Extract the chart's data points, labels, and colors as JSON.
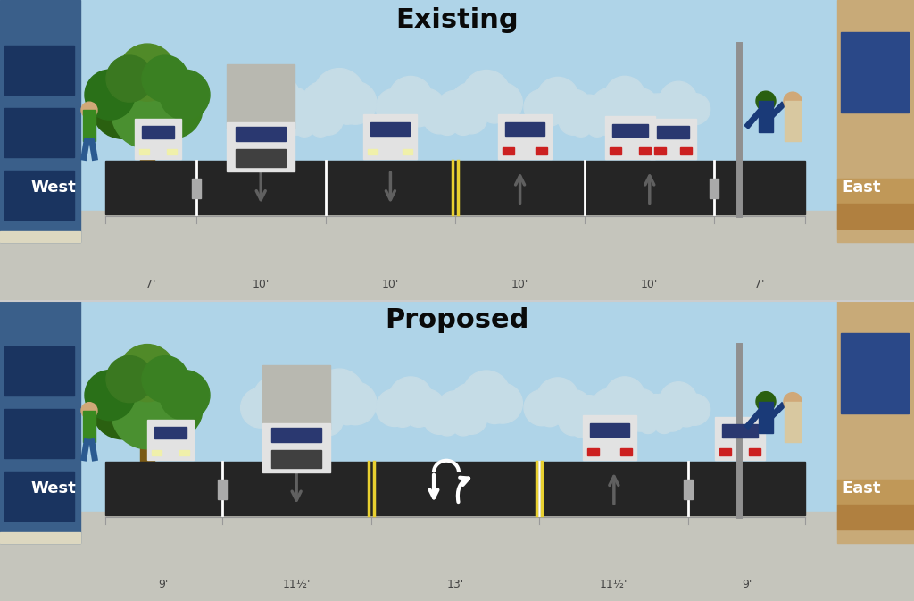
{
  "bg_sky": "#afd4e8",
  "bg_sidewalk": "#c5c5bc",
  "road_color": "#252525",
  "cloud_color": "#c5dce6",
  "building_left_blue": "#3a5f8a",
  "building_right_tan": "#c8aa78",
  "tree_trunk_color": "#7a5a14",
  "car_body_color": "#e2e2e2",
  "car_window_color": "#2a3870",
  "car_taillight_color": "#cc2020",
  "truck_cargo_color": "#b8b8b0",
  "arrow_dark": "#606060",
  "title_color": "#0a0a0a",
  "dim_label_color": "#444444",
  "existing_title": "Existing",
  "proposed_title": "Proposed",
  "west_label": "West",
  "east_label": "East",
  "existing_dims": [
    "7'",
    "10'",
    "10'",
    "10'",
    "10'",
    "7'"
  ],
  "existing_feet": [
    7,
    10,
    10,
    10,
    10,
    7
  ],
  "proposed_dims": [
    "9'",
    "11½'",
    "13'",
    "11½'",
    "9'"
  ],
  "proposed_feet": [
    9,
    11.5,
    13,
    11.5,
    9
  ]
}
